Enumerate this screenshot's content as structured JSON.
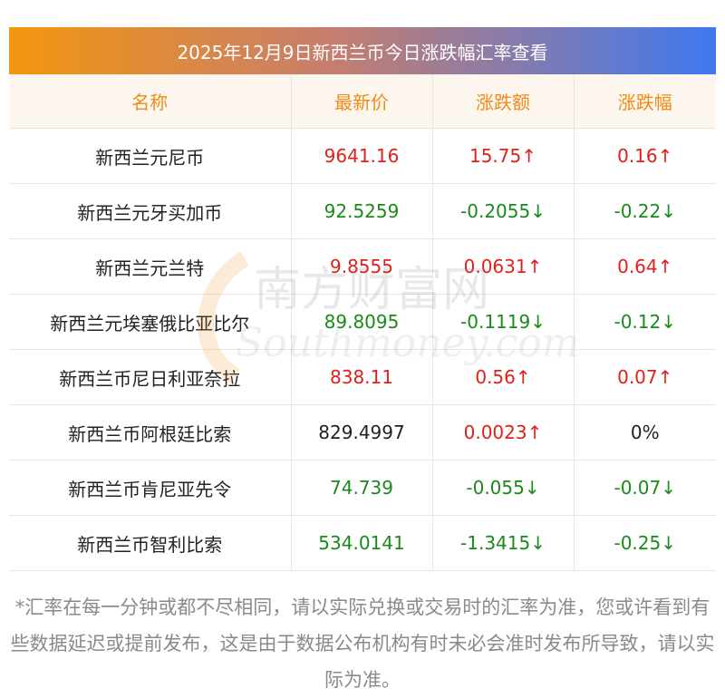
{
  "title": "2025年12月9日新西兰币今日涨跌幅汇率查看",
  "headers": [
    "名称",
    "最新价",
    "涨跌额",
    "涨跌幅"
  ],
  "colors": {
    "up": "#e0201b",
    "down": "#1a8a1a",
    "header_text": "#ef8b16",
    "flat": "#222222"
  },
  "rows": [
    {
      "name": "新西兰元尼币",
      "price": "9641.16",
      "change": "15.75↑",
      "pct": "0.16↑",
      "trend": "up",
      "price_trend": "up",
      "pct_trend": "up"
    },
    {
      "name": "新西兰元牙买加币",
      "price": "92.5259",
      "change": "-0.2055↓",
      "pct": "-0.22↓",
      "trend": "down",
      "price_trend": "down",
      "pct_trend": "down"
    },
    {
      "name": "新西兰元兰特",
      "price": "9.8555",
      "change": "0.0631↑",
      "pct": "0.64↑",
      "trend": "up",
      "price_trend": "up",
      "pct_trend": "up"
    },
    {
      "name": "新西兰元埃塞俄比亚比尔",
      "price": "89.8095",
      "change": "-0.1119↓",
      "pct": "-0.12↓",
      "trend": "down",
      "price_trend": "down",
      "pct_trend": "down"
    },
    {
      "name": "新西兰币尼日利亚奈拉",
      "price": "838.11",
      "change": "0.56↑",
      "pct": "0.07↑",
      "trend": "up",
      "price_trend": "up",
      "pct_trend": "up"
    },
    {
      "name": "新西兰币阿根廷比索",
      "price": "829.4997",
      "change": "0.0023↑",
      "pct": "0%",
      "trend": "up",
      "price_trend": "flat",
      "pct_trend": "flat"
    },
    {
      "name": "新西兰币肯尼亚先令",
      "price": "74.739",
      "change": "-0.055↓",
      "pct": "-0.07↓",
      "trend": "down",
      "price_trend": "down",
      "pct_trend": "down"
    },
    {
      "name": "新西兰币智利比索",
      "price": "534.0141",
      "change": "-1.3415↓",
      "pct": "-0.25↓",
      "trend": "down",
      "price_trend": "down",
      "pct_trend": "down"
    }
  ],
  "watermark": {
    "cn": "南方财富网",
    "en": "Southmoney.com"
  },
  "footnote": "*汇率在每一分钟或都不尽相同，请以实际兑换或交易时的汇率为准，您或许看到有些数据延迟或提前发布，这是由于数据公布机构有时未必会准时发布所导致，请以实际为准。"
}
